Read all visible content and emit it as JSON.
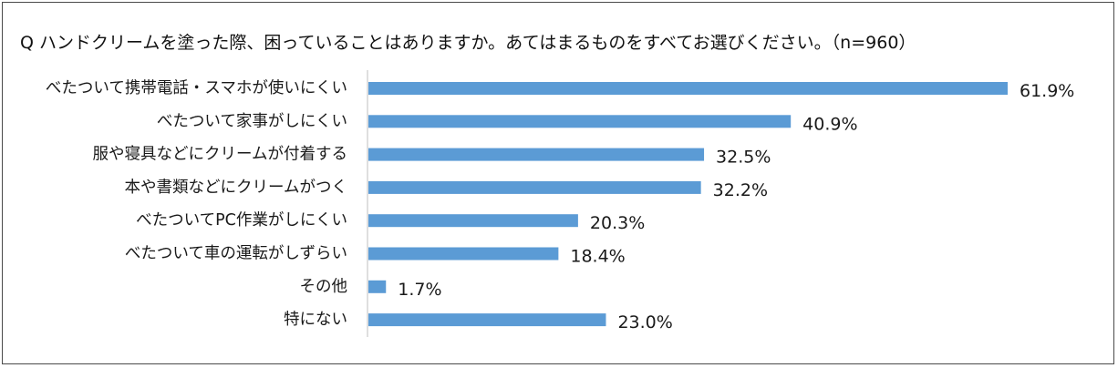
{
  "question": "Q ハンドクリームを塗った際、困っていることはありますか。あてはまるものをすべてお選びください。（n=960）",
  "colors": {
    "bar": "#5b9bd5",
    "axis": "#bfbfbf",
    "text": "#1a1a1a",
    "border": "#4a4a4a"
  },
  "chart_data": {
    "type": "bar",
    "orientation": "horizontal",
    "title": "Q ハンドクリームを塗った際、困っていることはありますか。あてはまるものをすべてお選びください。（n=960）",
    "xlabel": "",
    "ylabel": "",
    "unit": "%",
    "xlim": [
      0,
      62
    ],
    "grid": false,
    "legend": "none",
    "categories": [
      "べたついて携帯電話・スマホが使いにくい",
      "べたついて家事がしにくい",
      "服や寝具などにクリームが付着する",
      "本や書類などにクリームがつく",
      "べたついてPC作業がしにくい",
      "べたついて車の運転がしずらい",
      "その他",
      "特にない"
    ],
    "values": [
      61.9,
      40.9,
      32.5,
      32.2,
      20.3,
      18.4,
      1.7,
      23.0
    ],
    "value_labels": [
      "61.9%",
      "40.9%",
      "32.5%",
      "32.2%",
      "20.3%",
      "18.4%",
      "1.7%",
      "23.0%"
    ]
  }
}
